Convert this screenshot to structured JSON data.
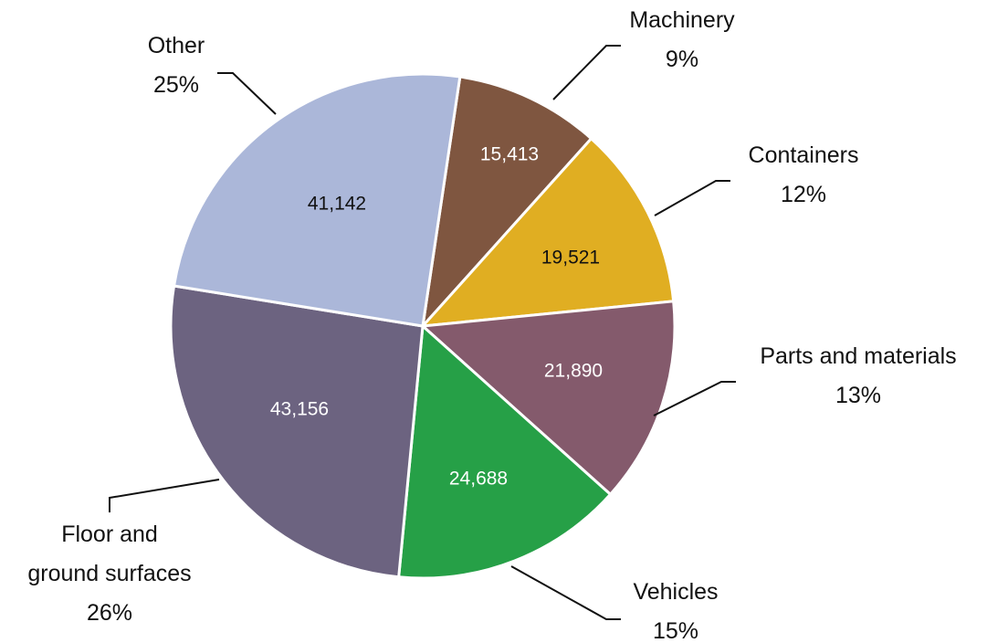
{
  "chart_data": {
    "type": "pie",
    "categories": [
      "Machinery",
      "Containers",
      "Parts and materials",
      "Vehicles",
      "Floor and ground surfaces",
      "Other"
    ],
    "values": [
      15413,
      19521,
      21890,
      24688,
      43156,
      41142
    ],
    "value_labels": [
      "15,413",
      "19,521",
      "21,890",
      "24,688",
      "43,156",
      "41,142"
    ],
    "percents": [
      9,
      12,
      13,
      15,
      26,
      25
    ],
    "percent_labels": [
      "9%",
      "12%",
      "13%",
      "15%",
      "26%",
      "25%"
    ],
    "colors": [
      "#7f5640",
      "#e0ae22",
      "#845a6c",
      "#26a047",
      "#6c6380",
      "#abb7d9"
    ]
  }
}
